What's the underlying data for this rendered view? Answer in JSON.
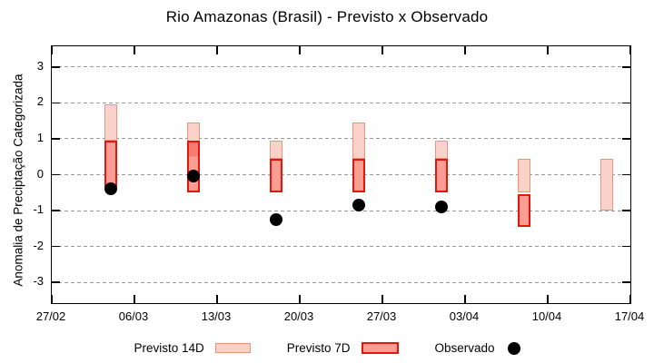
{
  "chart_data": {
    "type": "bar",
    "subtype": "forecast-range-candlesticks-with-observed-dots",
    "title": "Rio Amazonas (Brasil) - Previsto x Observado",
    "xlabel": "",
    "ylabel": "Anomalia de Preciptação Categorizada",
    "ylim": [
      -3.58,
      3.58
    ],
    "yticks": [
      3,
      2,
      1,
      0,
      -1,
      -2,
      -3
    ],
    "grid": true,
    "x_axis": {
      "tick_labels": [
        "27/02",
        "06/03",
        "13/03",
        "20/03",
        "27/03",
        "03/04",
        "10/04",
        "17/04"
      ],
      "tick_day_offsets": [
        0,
        7,
        14,
        21,
        28,
        35,
        42,
        49
      ],
      "total_days": 49
    },
    "series": [
      {
        "date": "04/03",
        "day_offset": 5,
        "previsto_14d": [
          0.95,
          1.95
        ],
        "previsto_7d": [
          -0.35,
          0.95
        ],
        "observado": -0.4
      },
      {
        "date": "11/03",
        "day_offset": 12,
        "previsto_14d": [
          0.5,
          1.45
        ],
        "previsto_7d": [
          -0.5,
          0.95
        ],
        "observado": -0.05
      },
      {
        "date": "18/03",
        "day_offset": 19,
        "previsto_14d": [
          0.45,
          0.95
        ],
        "previsto_7d": [
          -0.5,
          0.45
        ],
        "observado": -1.25
      },
      {
        "date": "25/03",
        "day_offset": 26,
        "previsto_14d": [
          0.45,
          1.45
        ],
        "previsto_7d": [
          -0.5,
          0.45
        ],
        "observado": -0.85
      },
      {
        "date": "01/04",
        "day_offset": 33,
        "previsto_14d": [
          0.45,
          0.95
        ],
        "previsto_7d": [
          -0.5,
          0.45
        ],
        "observado": -0.9
      },
      {
        "date": "08/04",
        "day_offset": 40,
        "previsto_14d": [
          -0.5,
          0.45
        ],
        "previsto_7d": [
          -1.45,
          -0.55
        ],
        "observado": null
      },
      {
        "date": "15/04",
        "day_offset": 47,
        "previsto_14d": [
          -1.0,
          0.45
        ],
        "previsto_7d": null,
        "observado": null
      }
    ],
    "legend": [
      {
        "label": "Previsto 14D",
        "marker": "box",
        "fill": "#fbd2ca",
        "stroke": "#f0907e"
      },
      {
        "label": "Previsto 7D",
        "marker": "box",
        "fill": "#fc9d94",
        "stroke": "#e3170d"
      },
      {
        "label": "Observado",
        "marker": "dot",
        "fill": "#000000"
      }
    ],
    "colors": {
      "p14_fill": "#fbd2ca",
      "p14_stroke": "#f0907e",
      "p7_fill": "#fc9d94",
      "p7_stroke": "#e3170d",
      "overlap_fill": "#f87b6f",
      "observado": "#000000",
      "grid": "#999999",
      "axis": "#000000",
      "background": "#ffffff"
    }
  }
}
